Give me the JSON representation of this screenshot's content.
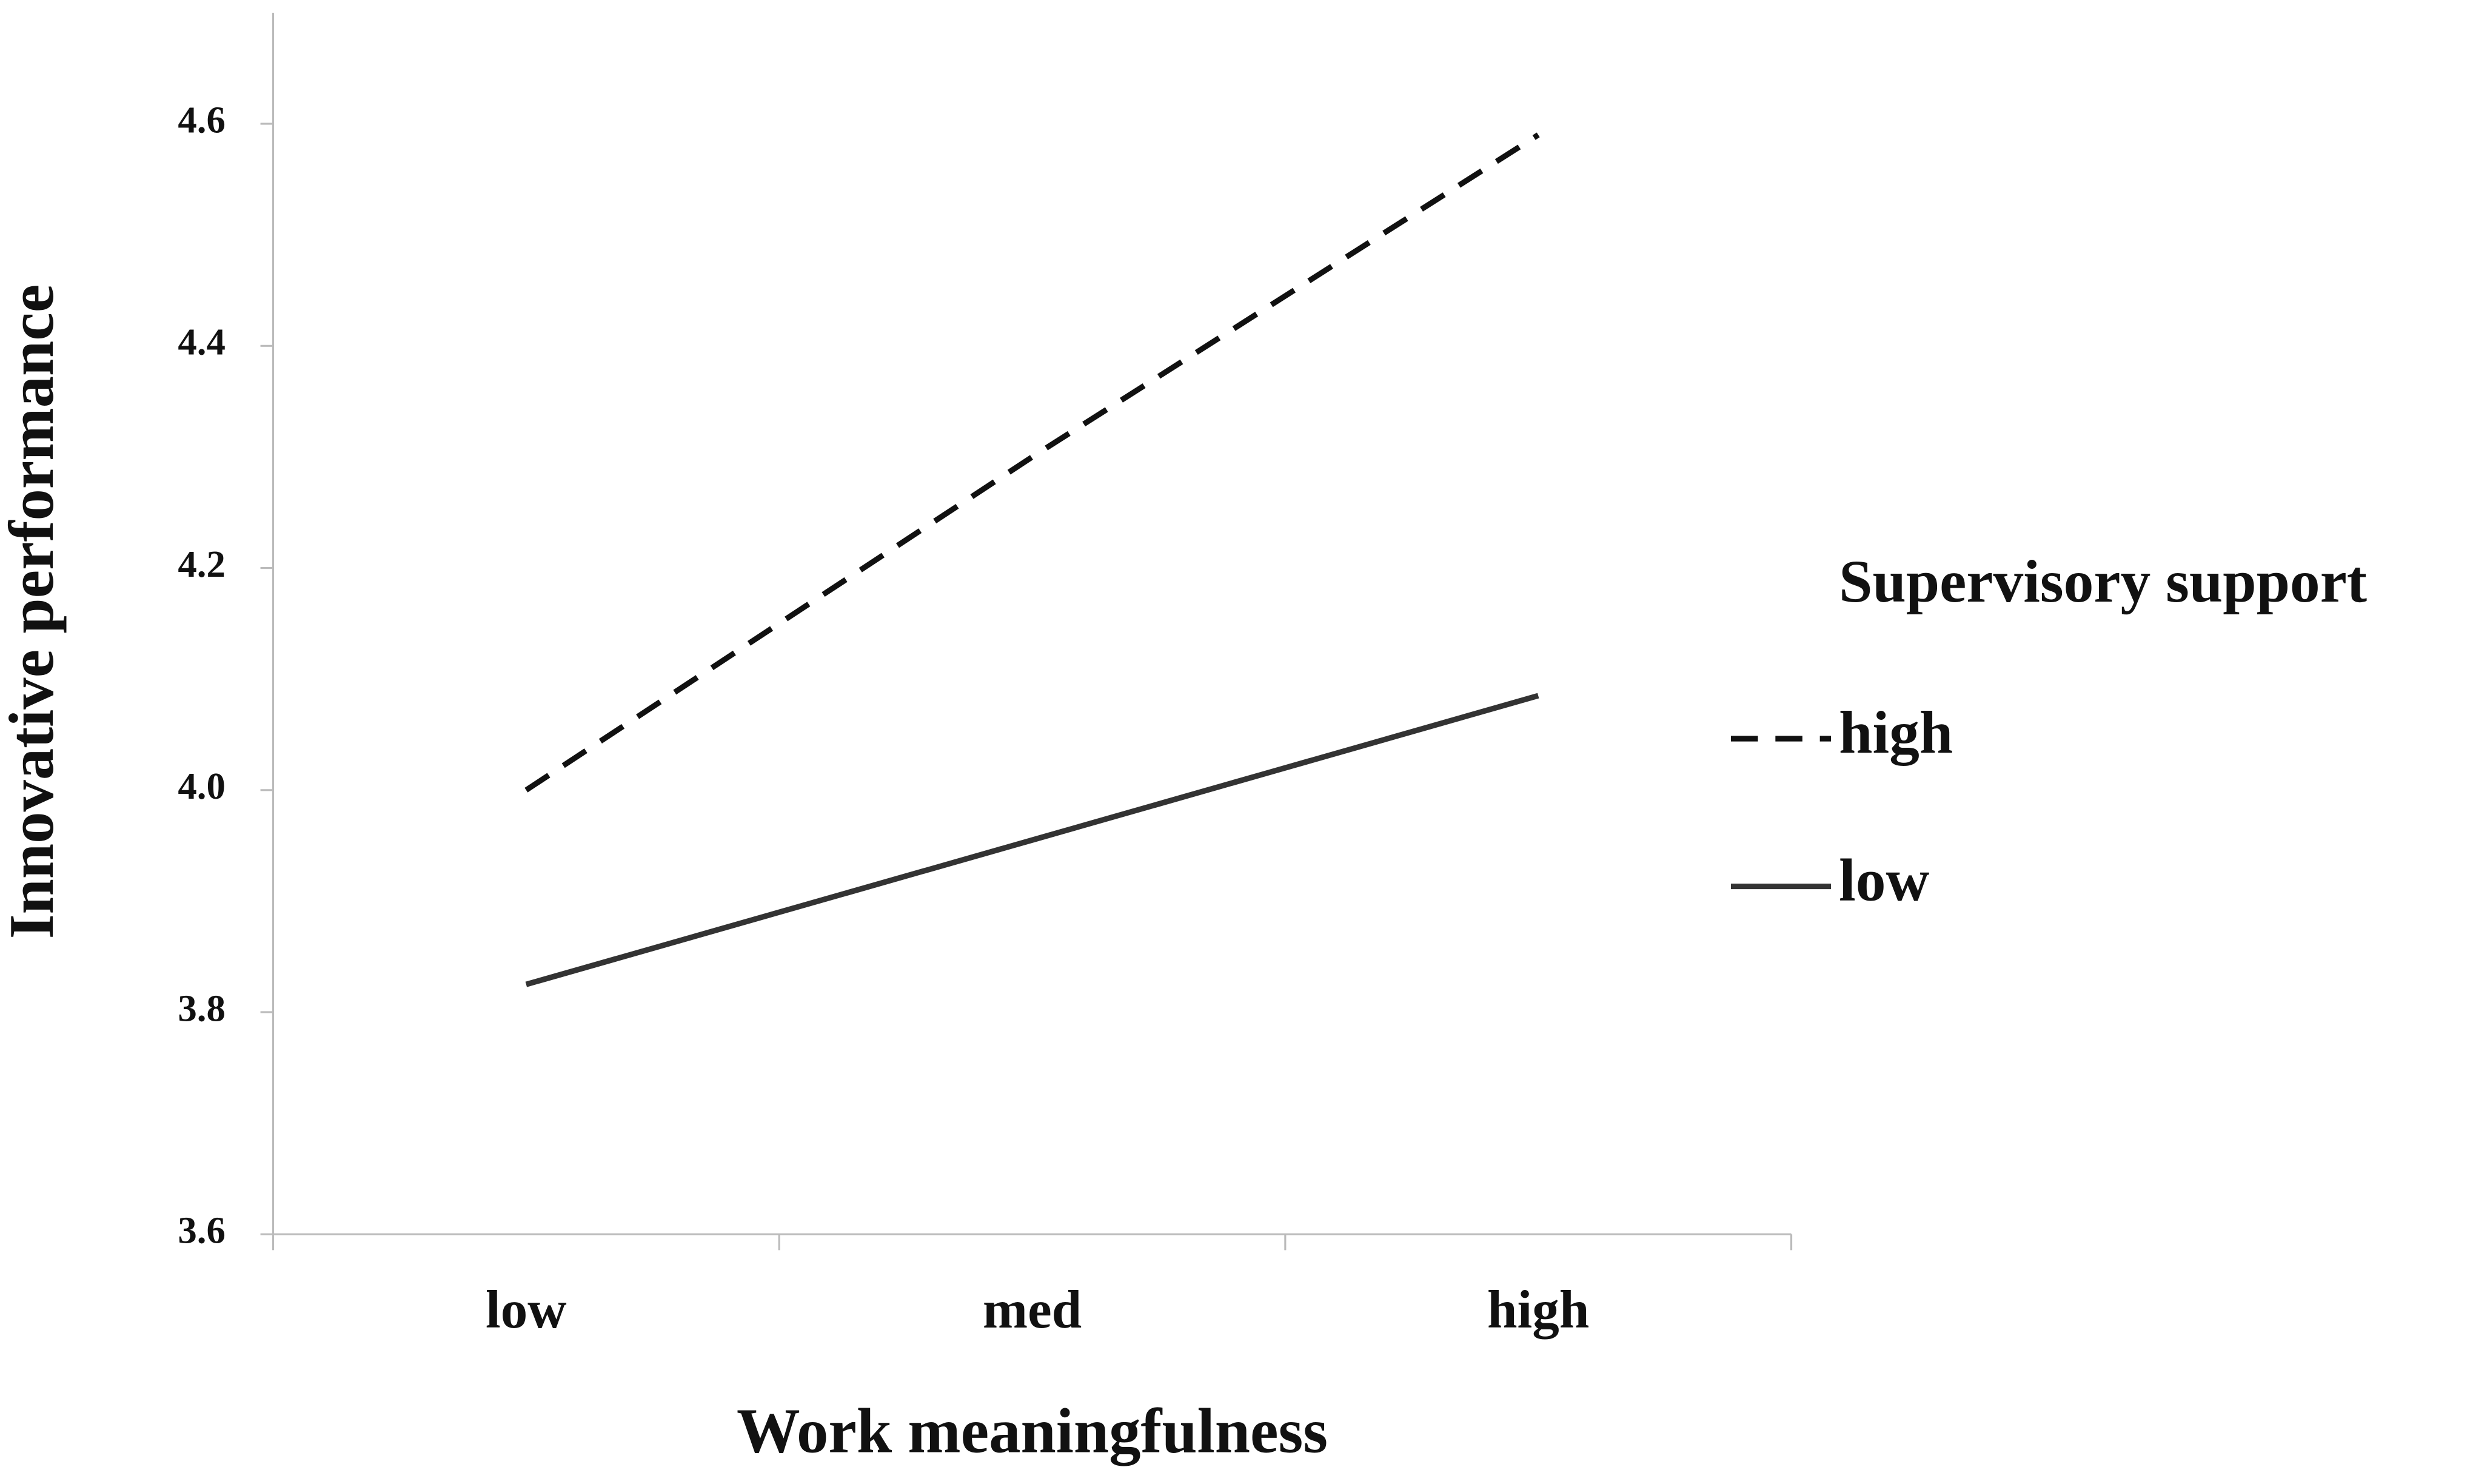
{
  "chart_data": {
    "type": "line",
    "x_label": "Work meaningfulness",
    "y_label": "Innovative performance",
    "categories": [
      "low",
      "med",
      "high"
    ],
    "series": [
      {
        "name": "high",
        "color": "#111111",
        "dash": true,
        "values": [
          4.0,
          4.3,
          4.59
        ]
      },
      {
        "name": "low",
        "color": "#333333",
        "dash": false,
        "values": [
          3.825,
          3.955,
          4.085
        ]
      }
    ],
    "legend_title": "Supervisory support",
    "ylim": [
      3.6,
      4.7
    ],
    "yticks": [
      3.6,
      3.8,
      {
        "value": 4.0,
        "label": "4.0"
      },
      4.2,
      4.4,
      4.6
    ]
  }
}
